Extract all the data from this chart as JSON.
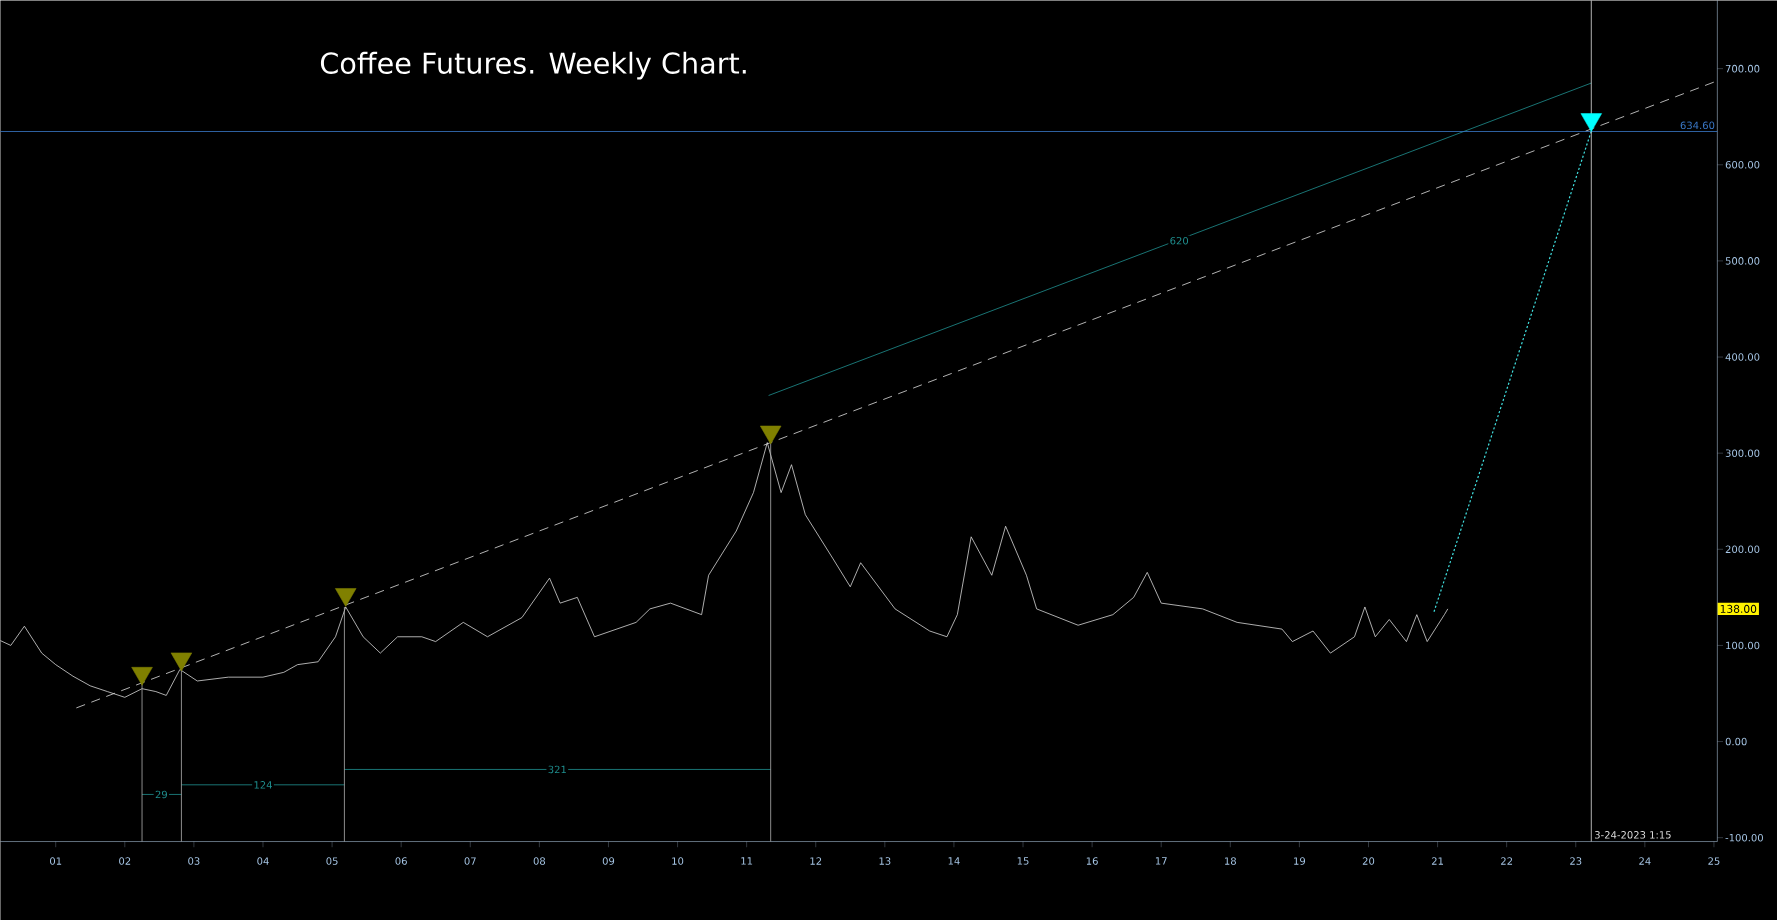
{
  "chart_data": {
    "type": "line",
    "title": "Coffee Futures.  Weekly Chart.",
    "xlim": [
      "2000-03-14",
      "2025-01-19"
    ],
    "ylim": [
      -104,
      771
    ],
    "xticks": [
      {
        "value": "2001",
        "label": "01"
      },
      {
        "value": "2002",
        "label": "02"
      },
      {
        "value": "2003",
        "label": "03"
      },
      {
        "value": "2004",
        "label": "04"
      },
      {
        "value": "2005",
        "label": "05"
      },
      {
        "value": "2006",
        "label": "06"
      },
      {
        "value": "2007",
        "label": "07"
      },
      {
        "value": "2008",
        "label": "08"
      },
      {
        "value": "2009",
        "label": "09"
      },
      {
        "value": "2010",
        "label": "10"
      },
      {
        "value": "2011",
        "label": "11"
      },
      {
        "value": "2012",
        "label": "12"
      },
      {
        "value": "2013",
        "label": "13"
      },
      {
        "value": "2014",
        "label": "14"
      },
      {
        "value": "2015",
        "label": "15"
      },
      {
        "value": "2016",
        "label": "16"
      },
      {
        "value": "2017",
        "label": "17"
      },
      {
        "value": "2018",
        "label": "18"
      },
      {
        "value": "2019",
        "label": "19"
      },
      {
        "value": "2020",
        "label": "20"
      },
      {
        "value": "2021",
        "label": "21"
      },
      {
        "value": "2022",
        "label": "22"
      },
      {
        "value": "2023",
        "label": "23"
      },
      {
        "value": "2024",
        "label": "24"
      },
      {
        "value": "2025",
        "label": "25"
      }
    ],
    "yticks": [
      {
        "value": -100,
        "label": "-100.00"
      },
      {
        "value": 0,
        "label": "0.00"
      },
      {
        "value": 100,
        "label": "100.00"
      },
      {
        "value": 200,
        "label": "200.00"
      },
      {
        "value": 300,
        "label": "300.00"
      },
      {
        "value": 400,
        "label": "400.00"
      },
      {
        "value": 500,
        "label": "500.00"
      },
      {
        "value": 600,
        "label": "600.00"
      },
      {
        "value": 700,
        "label": "700.00"
      }
    ],
    "series": [
      {
        "type": "line",
        "color": "#d8d8d8",
        "x": [
          "2000-03-14",
          "2000-05-08",
          "2000-07-19",
          "2000-10-19",
          "2001-01-01",
          "2001-04-02",
          "2001-07-02",
          "2001-10-01",
          "2002-01-01",
          "2002-04-02",
          "2002-06-14",
          "2002-08-08",
          "2002-10-19",
          "2003-01-19",
          "2003-07-02",
          "2004-01-01",
          "2004-04-20",
          "2004-07-02",
          "2004-10-19",
          "2005-01-19",
          "2005-03-14",
          "2005-06-14",
          "2005-09-13",
          "2005-12-13",
          "2006-04-20",
          "2006-07-02",
          "2006-11-25",
          "2007-04-02",
          "2007-10-01",
          "2008-02-24",
          "2008-04-20",
          "2008-07-20",
          "2008-10-19",
          "2009-05-27",
          "2009-08-08",
          "2009-11-25",
          "2010-05-08",
          "2010-06-14",
          "2010-11-07",
          "2011-02-06",
          "2011-04-20",
          "2011-07-02",
          "2011-08-26",
          "2011-11-07",
          "2012-04-02",
          "2012-07-02",
          "2012-08-26",
          "2013-02-24",
          "2013-08-26",
          "2013-11-25",
          "2014-01-19",
          "2014-04-02",
          "2014-07-20",
          "2014-10-01",
          "2015-01-19",
          "2015-03-14",
          "2015-10-19",
          "2016-04-20",
          "2016-08-08",
          "2016-10-19",
          "2017-01-01",
          "2017-08-08",
          "2018-02-06",
          "2018-10-01",
          "2018-11-25",
          "2019-03-14",
          "2019-06-14",
          "2019-10-19",
          "2019-12-13",
          "2020-02-06",
          "2020-04-20",
          "2020-07-20",
          "2020-09-13",
          "2020-11-07",
          "2021-02-06",
          "2021-02-24"
        ],
        "values": [
          105,
          100,
          120,
          92,
          80,
          68,
          58,
          52,
          46,
          55,
          52,
          48,
          75,
          63,
          67,
          67,
          72,
          80,
          83,
          109,
          140,
          109,
          92,
          109,
          109,
          104,
          124,
          109,
          129,
          170,
          144,
          150,
          109,
          124,
          138,
          144,
          132,
          173,
          219,
          259,
          311,
          259,
          288,
          236,
          190,
          161,
          186,
          138,
          115,
          109,
          132,
          213,
          173,
          224,
          173,
          138,
          121,
          132,
          150,
          176,
          144,
          138,
          124,
          117,
          104,
          115,
          92,
          109,
          140,
          109,
          127,
          104,
          132,
          104,
          132,
          138
        ]
      },
      {
        "type": "line",
        "line_style": "dashed",
        "color": "#e0e0e0",
        "x": [
          "2001-04-20",
          "2025-01-01"
        ],
        "values": [
          35,
          686
        ]
      },
      {
        "type": "line",
        "color": "#1f9090",
        "x": [
          "2011-04-27",
          "2023-03-24T01:15"
        ],
        "values": [
          360,
          685
        ]
      },
      {
        "type": "line",
        "line_style": "dotted",
        "color": "#40e0e0",
        "x": [
          "2020-12-13",
          "2023-03-24T01:15"
        ],
        "values": [
          135,
          635
        ]
      },
      {
        "type": "line",
        "color": "#1f9090",
        "x": [
          "2002-04-02",
          "2002-10-27"
        ],
        "values": [
          -55,
          -55
        ]
      },
      {
        "type": "line",
        "color": "#1f9090",
        "x": [
          "2002-10-27",
          "2005-03-07"
        ],
        "values": [
          -45,
          -45
        ]
      },
      {
        "type": "line",
        "color": "#1f9090",
        "x": [
          "2005-03-07",
          "2011-05-08"
        ],
        "values": [
          -29,
          -29
        ]
      },
      {
        "type": "line",
        "color": "#b0b0b0",
        "x": [
          "2002-04-02",
          "2002-04-02"
        ],
        "values": [
          -104,
          61
        ]
      },
      {
        "type": "line",
        "color": "#b0b0b0",
        "x": [
          "2002-10-27",
          "2002-10-27"
        ],
        "values": [
          -104,
          78
        ]
      },
      {
        "type": "line",
        "color": "#b0b0b0",
        "x": [
          "2005-03-07",
          "2005-03-07"
        ],
        "values": [
          -104,
          140
        ]
      },
      {
        "type": "line",
        "color": "#b0b0b0",
        "x": [
          "2011-05-08",
          "2011-05-08"
        ],
        "values": [
          -104,
          311
        ]
      },
      {
        "type": "scatter",
        "marker": "triangle",
        "color": "#808000",
        "x": [
          "2002-04-02",
          "2002-10-27",
          "2005-03-14",
          "2011-05-08"
        ],
        "values": [
          71,
          86,
          153,
          322
        ]
      },
      {
        "type": "scatter",
        "marker": "triangle",
        "color": "#00ffff",
        "x": [
          "2023-03-24T01:15"
        ],
        "values": [
          647
        ]
      }
    ],
    "ref_lines": [
      {
        "axis": "y",
        "value": 634.6,
        "label": "634.60",
        "color": "#3a78c8"
      },
      {
        "axis": "x",
        "value": "2023-03-24T01:15",
        "label": "3-24-2023 1:15",
        "color": "#e0e0e0"
      }
    ],
    "annotations": [
      {
        "text": "29",
        "x": "2002-07-13",
        "y": -55
      },
      {
        "text": "124",
        "x": "2004-01-01",
        "y": -45
      },
      {
        "text": "321",
        "x": "2008-04-05",
        "y": -29
      },
      {
        "text": "620",
        "x": "2017-04-06",
        "y": 521
      },
      "138.00"
    ]
  }
}
